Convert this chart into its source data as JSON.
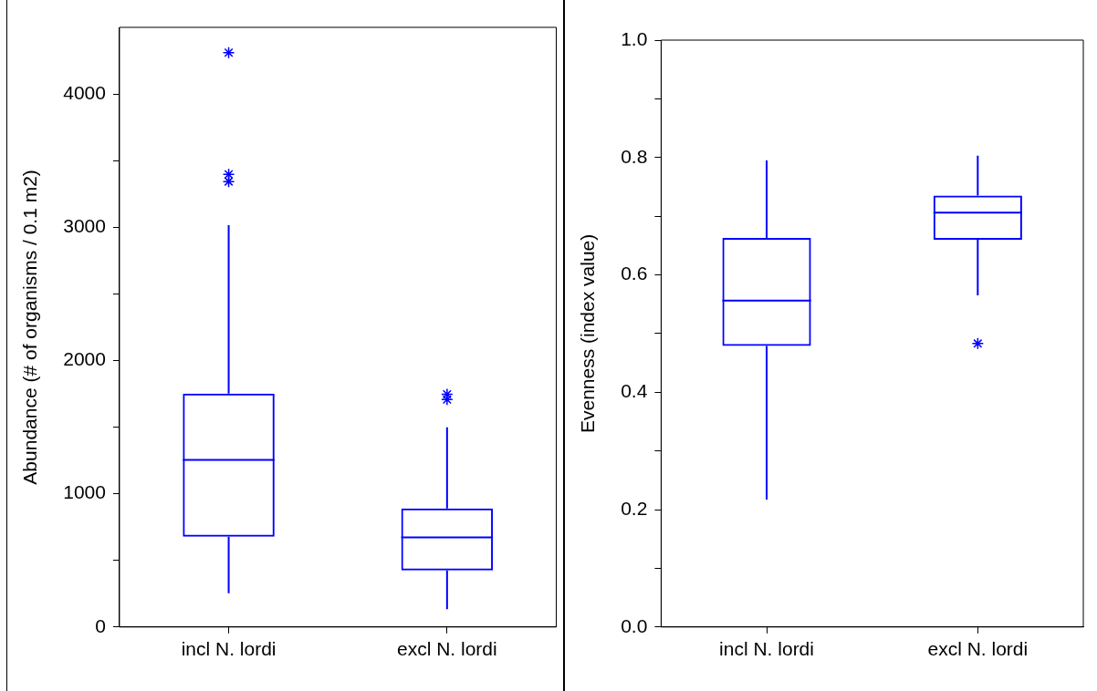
{
  "chart_data": [
    {
      "type": "box",
      "ylabel": "Abundance (# of organisms / 0.1 m2)",
      "categories": [
        "incl N. lordi",
        "excl N. lordi"
      ],
      "series": [
        {
          "color": "#0000ff",
          "boxes": [
            {
              "low": 254,
              "q1": 678,
              "median": 1254,
              "q3": 1752,
              "high": 3015,
              "outliers": [
                4310,
                3397,
                3343
              ]
            },
            {
              "low": 134,
              "q1": 424,
              "median": 672,
              "q3": 890,
              "high": 1499,
              "outliers": [
                1746,
                1707
              ]
            }
          ]
        }
      ],
      "ylim": [
        0,
        4500
      ],
      "yticks": [
        0,
        {
          "value": 500,
          "label": null
        },
        1000,
        {
          "value": 1500,
          "label": null
        },
        2000,
        {
          "value": 2500,
          "label": null
        },
        3000,
        {
          "value": 3500,
          "label": null
        },
        4000
      ]
    },
    {
      "type": "box",
      "ylabel": "Evenness (index value)",
      "categories": [
        "incl N. lordi",
        "excl N. lordi"
      ],
      "series": [
        {
          "color": "#0000ff",
          "boxes": [
            {
              "low": 0.217,
              "q1": 0.479,
              "median": 0.556,
              "q3": 0.663,
              "high": 0.795
            },
            {
              "low": 0.565,
              "q1": 0.66,
              "median": 0.706,
              "q3": 0.735,
              "high": 0.803,
              "outliers": [
                0.483
              ]
            }
          ]
        }
      ],
      "ylim": [
        0,
        1
      ],
      "yticks": [
        {
          "value": 0,
          "label": "0.0"
        },
        {
          "value": 0.1,
          "label": null
        },
        0.2,
        {
          "value": 0.3,
          "label": null
        },
        0.4,
        {
          "value": 0.5,
          "label": null
        },
        0.6,
        {
          "value": 0.7,
          "label": null
        },
        0.8,
        {
          "value": 0.9,
          "label": null
        },
        {
          "value": 1,
          "label": "1.0"
        }
      ]
    }
  ]
}
